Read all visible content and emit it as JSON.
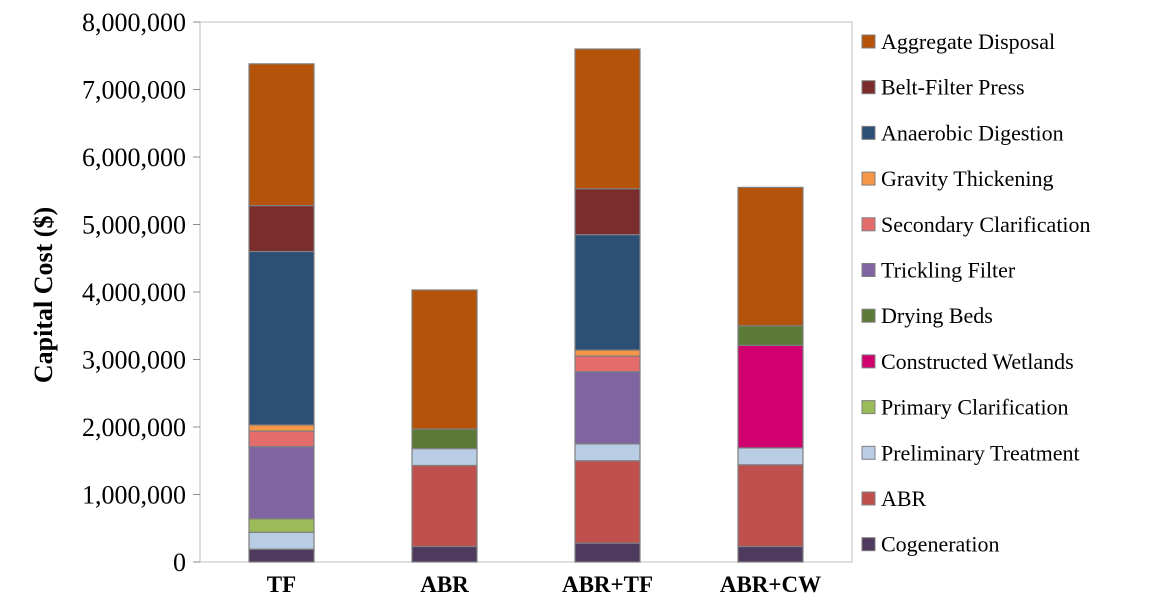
{
  "chart_data": {
    "type": "bar",
    "stacked": true,
    "ylabel": "Capital Cost ($)",
    "xlabel": "",
    "ylim": [
      0,
      8000000
    ],
    "yticks": [
      0,
      1000000,
      2000000,
      3000000,
      4000000,
      5000000,
      6000000,
      7000000,
      8000000
    ],
    "ytick_labels": [
      "0",
      "1,000,000",
      "2,000,000",
      "3,000,000",
      "4,000,000",
      "5,000,000",
      "6,000,000",
      "7,000,000",
      "8,000,000"
    ],
    "grid": false,
    "legend_position": "right",
    "categories": [
      "TF",
      "ABR",
      "ABR+TF",
      "ABR+CW"
    ],
    "series": [
      {
        "name": "Cogeneration",
        "color": "#4f3a5f",
        "values": [
          190000,
          230000,
          280000,
          230000
        ]
      },
      {
        "name": "ABR",
        "color": "#c0504d",
        "values": [
          0,
          1200000,
          1220000,
          1210000
        ]
      },
      {
        "name": "Preliminary Treatment",
        "color": "#b9cde5",
        "values": [
          250000,
          250000,
          250000,
          250000
        ]
      },
      {
        "name": "Primary Clarification",
        "color": "#9bbb59",
        "values": [
          200000,
          0,
          0,
          0
        ]
      },
      {
        "name": "Constructed Wetlands",
        "color": "#d0006f",
        "values": [
          0,
          0,
          0,
          1520000
        ]
      },
      {
        "name": "Drying Beds",
        "color": "#5b7a35",
        "values": [
          0,
          290000,
          0,
          290000
        ]
      },
      {
        "name": "Trickling Filter",
        "color": "#8064a2",
        "values": [
          1070000,
          0,
          1070000,
          0
        ]
      },
      {
        "name": "Secondary Clarification",
        "color": "#e46c6c",
        "values": [
          230000,
          0,
          230000,
          0
        ]
      },
      {
        "name": "Gravity Thickening",
        "color": "#f79646",
        "values": [
          90000,
          0,
          90000,
          0
        ]
      },
      {
        "name": "Anaerobic Digestion",
        "color": "#2e4f75",
        "values": [
          2570000,
          0,
          1710000,
          0
        ]
      },
      {
        "name": "Belt-Filter Press",
        "color": "#7b2c2c",
        "values": [
          680000,
          0,
          680000,
          0
        ]
      },
      {
        "name": "Aggregate Disposal",
        "color": "#b45309",
        "values": [
          2100000,
          2060000,
          2070000,
          2050000
        ]
      }
    ],
    "legend_order": [
      "Aggregate Disposal",
      "Belt-Filter Press",
      "Anaerobic Digestion",
      "Gravity Thickening",
      "Secondary Clarification",
      "Trickling Filter",
      "Drying Beds",
      "Constructed Wetlands",
      "Primary Clarification",
      "Preliminary Treatment",
      "ABR",
      "Cogeneration"
    ]
  }
}
